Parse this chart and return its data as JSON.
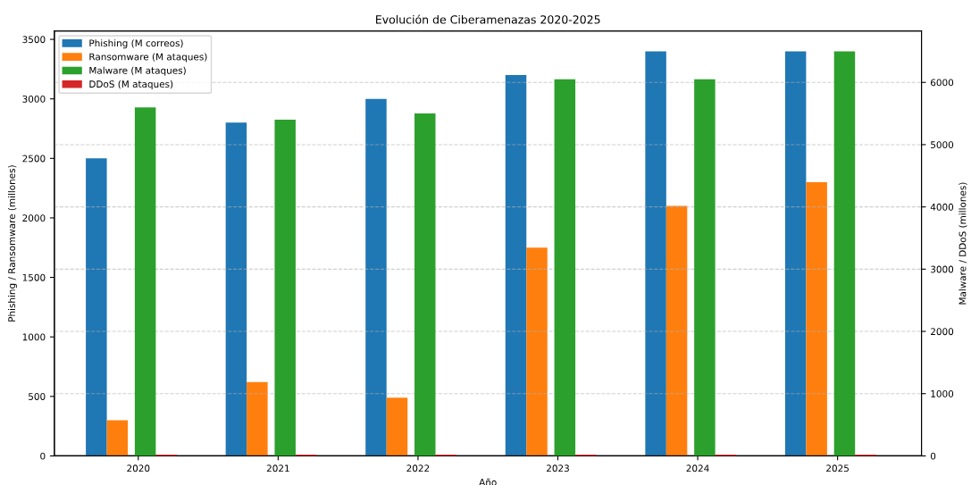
{
  "chart_data": {
    "type": "bar",
    "title": "Evolución de Ciberamenazas 2020-2025",
    "xlabel": "Año",
    "ylabel": "Phishing / Ransomware (millones)",
    "y2label": "Malware / DDoS (millones)",
    "categories": [
      "2020",
      "2021",
      "2022",
      "2023",
      "2024",
      "2025"
    ],
    "series": [
      {
        "name": "Phishing (M correos)",
        "color": "#1f77b4",
        "values": [
          2500,
          2800,
          3000,
          3200,
          3400,
          3400
        ]
      },
      {
        "name": "Ransomware (M ataques)",
        "color": "#ff7f0e",
        "values": [
          300,
          620,
          490,
          1750,
          2100,
          2300
        ]
      },
      {
        "name": "Malware (M ataques)",
        "color": "#2ca02c",
        "axis": "y2",
        "values": [
          5600,
          5400,
          5500,
          6050,
          6050,
          6500
        ]
      },
      {
        "name": "DDoS (M ataques)",
        "color": "#d62728",
        "axis": "y2",
        "values": [
          20,
          20,
          20,
          20,
          20,
          20
        ]
      }
    ],
    "ylim": [
      0,
      3570
    ],
    "yticks": [
      0,
      500,
      1000,
      1500,
      2000,
      2500,
      3000,
      3500
    ],
    "y2lim": [
      0,
      6825
    ],
    "y2ticks": [
      0,
      1000,
      2000,
      3000,
      4000,
      5000,
      6000
    ],
    "grid": "y",
    "legend": "top left"
  }
}
